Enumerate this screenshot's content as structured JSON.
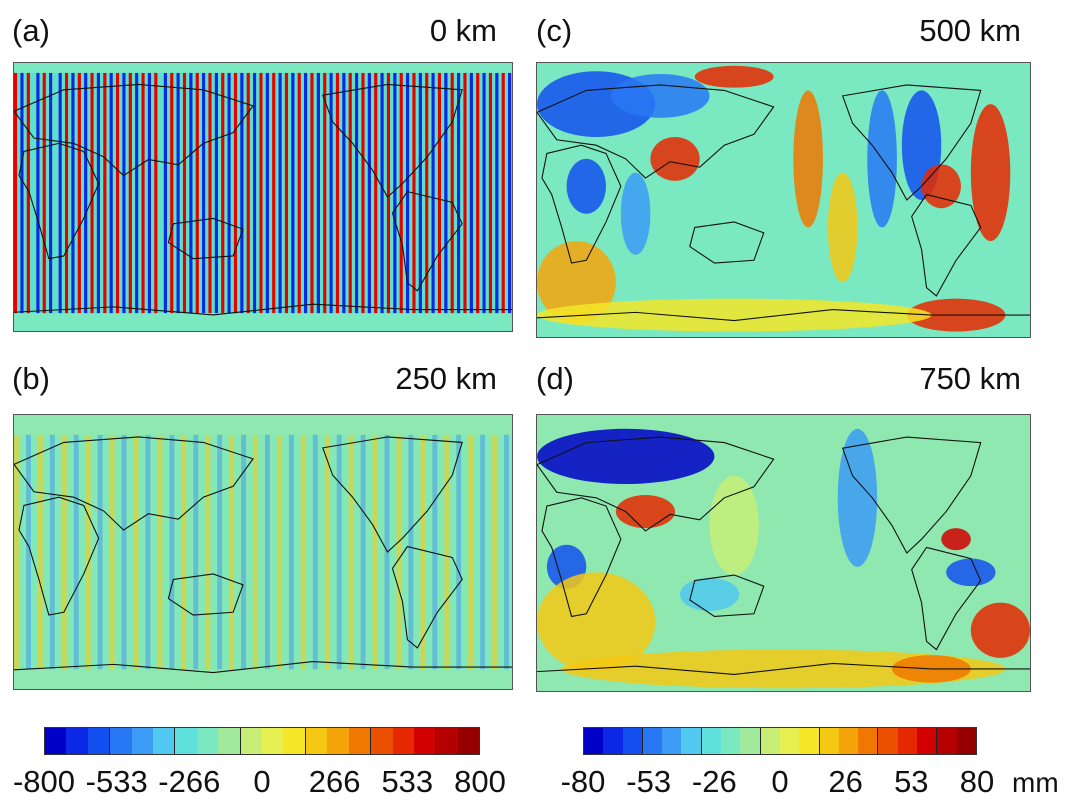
{
  "panels": [
    {
      "id": "a",
      "label": "(a)",
      "title": "0 km"
    },
    {
      "id": "b",
      "label": "(b)",
      "title": "250 km"
    },
    {
      "id": "c",
      "label": "(c)",
      "title": "500 km"
    },
    {
      "id": "d",
      "label": "(d)",
      "title": "750 km"
    }
  ],
  "colorbars": [
    {
      "ticks": [
        "-800",
        "-533",
        "-266",
        "0",
        "266",
        "533",
        "800"
      ],
      "unit": ""
    },
    {
      "ticks": [
        "-80",
        "-53",
        "-26",
        "0",
        "26",
        "53",
        "80"
      ],
      "unit": "mm"
    }
  ],
  "colormap": [
    "#0000c8",
    "#0a28e6",
    "#1450f0",
    "#2878f5",
    "#3c9bf5",
    "#50c8f0",
    "#5fe0dc",
    "#7ae8c0",
    "#a0e89a",
    "#c8ee78",
    "#e6f050",
    "#f5e628",
    "#f5c814",
    "#f5a50a",
    "#f07800",
    "#eb5000",
    "#e62800",
    "#d20000",
    "#b40000",
    "#960000"
  ]
}
